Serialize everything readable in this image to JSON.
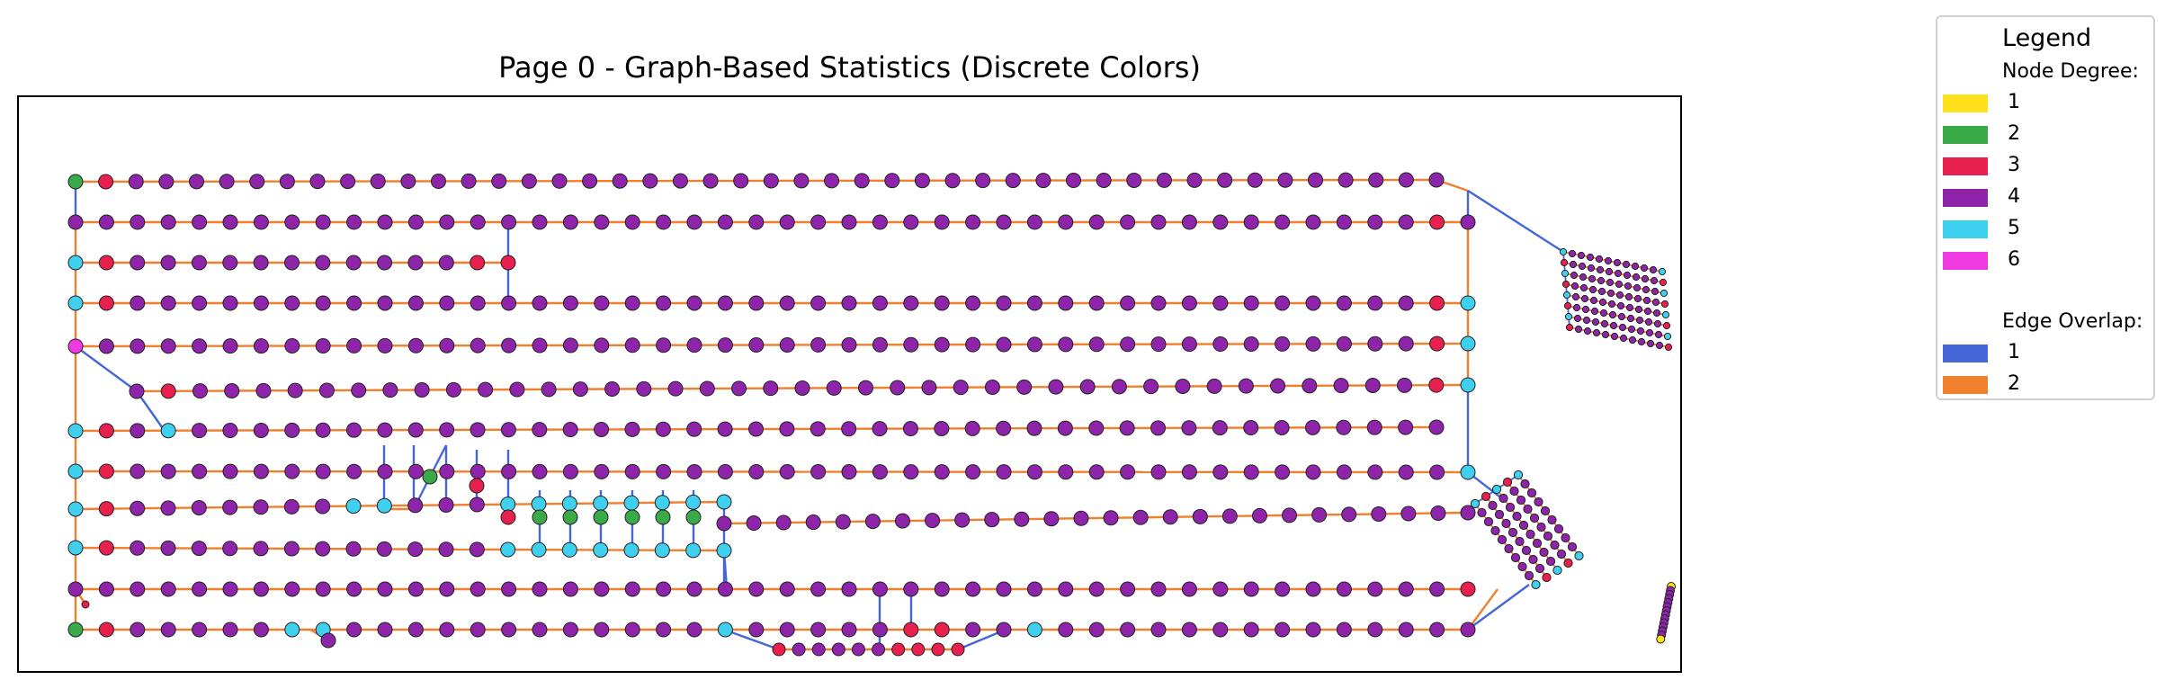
{
  "title": "Page 0 - Graph-Based Statistics (Discrete Colors)",
  "legend": {
    "title": "Legend",
    "node_heading": "Node Degree:",
    "node_items": [
      {
        "label": "1",
        "color": "#FFE01B"
      },
      {
        "label": "2",
        "color": "#3AAA49"
      },
      {
        "label": "3",
        "color": "#E8204D"
      },
      {
        "label": "4",
        "color": "#8E24AA"
      },
      {
        "label": "5",
        "color": "#3FD0F0"
      },
      {
        "label": "6",
        "color": "#EE3AE0"
      }
    ],
    "edge_heading": "Edge Overlap:",
    "edge_items": [
      {
        "label": "1",
        "color": "#4466D6"
      },
      {
        "label": "2",
        "color": "#F07F2E"
      }
    ]
  }
}
